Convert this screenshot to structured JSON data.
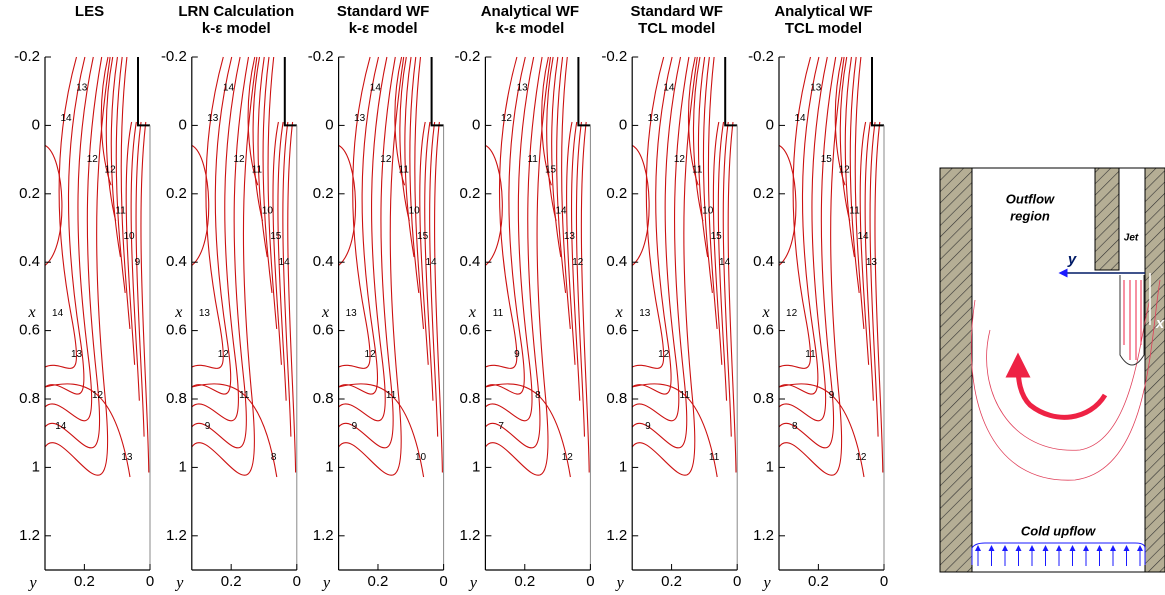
{
  "chart_data": [
    {
      "type": "contour",
      "title": "LES",
      "ylabel": "x",
      "xlabel": "y",
      "ylim": [
        -0.2,
        1.3
      ],
      "xlim": [
        0.32,
        0
      ],
      "yticks": [
        -0.2,
        0,
        0.2,
        0.4,
        0.6,
        0.8,
        1,
        1.2
      ],
      "xticks": [
        0.2,
        0
      ],
      "color": "#cc1111",
      "contour_labels": [
        13,
        14,
        12,
        12,
        11,
        10,
        9,
        14,
        13,
        12,
        14,
        13
      ]
    },
    {
      "type": "contour",
      "title": "LRN Calculation",
      "subtitle": "k-ε model",
      "ylabel": "x",
      "xlabel": "y",
      "ylim": [
        -0.2,
        1.3
      ],
      "xlim": [
        0.32,
        0
      ],
      "yticks": [
        -0.2,
        0,
        0.2,
        0.4,
        0.6,
        0.8,
        1,
        1.2
      ],
      "xticks": [
        0.2,
        0
      ],
      "color": "#cc1111",
      "contour_labels": [
        14,
        13,
        12,
        11,
        10,
        15,
        14,
        13,
        12,
        11,
        9,
        8
      ]
    },
    {
      "type": "contour",
      "title": "Standard WF",
      "subtitle": "k-ε model",
      "ylabel": "x",
      "xlabel": "y",
      "ylim": [
        -0.2,
        1.3
      ],
      "xlim": [
        0.32,
        0
      ],
      "yticks": [
        -0.2,
        0,
        0.2,
        0.4,
        0.6,
        0.8,
        1,
        1.2
      ],
      "xticks": [
        0.2,
        0
      ],
      "color": "#cc1111",
      "contour_labels": [
        14,
        13,
        12,
        11,
        10,
        15,
        14,
        13,
        12,
        11,
        9,
        10
      ]
    },
    {
      "type": "contour",
      "title": "Analytical WF",
      "subtitle": "k-ε model",
      "ylabel": "x",
      "xlabel": "y",
      "ylim": [
        -0.2,
        1.3
      ],
      "xlim": [
        0.32,
        0
      ],
      "yticks": [
        -0.2,
        0,
        0.2,
        0.4,
        0.6,
        0.8,
        1,
        1.2
      ],
      "xticks": [
        0.2,
        0
      ],
      "color": "#cc1111",
      "contour_labels": [
        13,
        12,
        11,
        15,
        14,
        13,
        12,
        11,
        9,
        8,
        7,
        12
      ]
    },
    {
      "type": "contour",
      "title": "Standard WF",
      "subtitle": "TCL model",
      "ylabel": "x",
      "xlabel": "y",
      "ylim": [
        -0.2,
        1.3
      ],
      "xlim": [
        0.32,
        0
      ],
      "yticks": [
        -0.2,
        0,
        0.2,
        0.4,
        0.6,
        0.8,
        1,
        1.2
      ],
      "xticks": [
        0.2,
        0
      ],
      "color": "#cc1111",
      "contour_labels": [
        14,
        13,
        12,
        11,
        10,
        15,
        14,
        13,
        12,
        11,
        9,
        11
      ]
    },
    {
      "type": "contour",
      "title": "Analytical WF",
      "subtitle": "TCL model",
      "ylabel": "x",
      "xlabel": "y",
      "ylim": [
        -0.2,
        1.3
      ],
      "xlim": [
        0.32,
        0
      ],
      "yticks": [
        -0.2,
        0,
        0.2,
        0.4,
        0.6,
        0.8,
        1,
        1.2
      ],
      "xticks": [
        0.2,
        0
      ],
      "color": "#cc1111",
      "contour_labels": [
        13,
        14,
        15,
        12,
        11,
        14,
        13,
        12,
        11,
        9,
        8,
        12
      ]
    }
  ],
  "diagram": {
    "outflow_label": [
      "Outflow",
      "region"
    ],
    "jet_label": "Jet",
    "y_axis_label": "y",
    "x_axis_label": "x",
    "inflow_label": "Cold upflow"
  }
}
